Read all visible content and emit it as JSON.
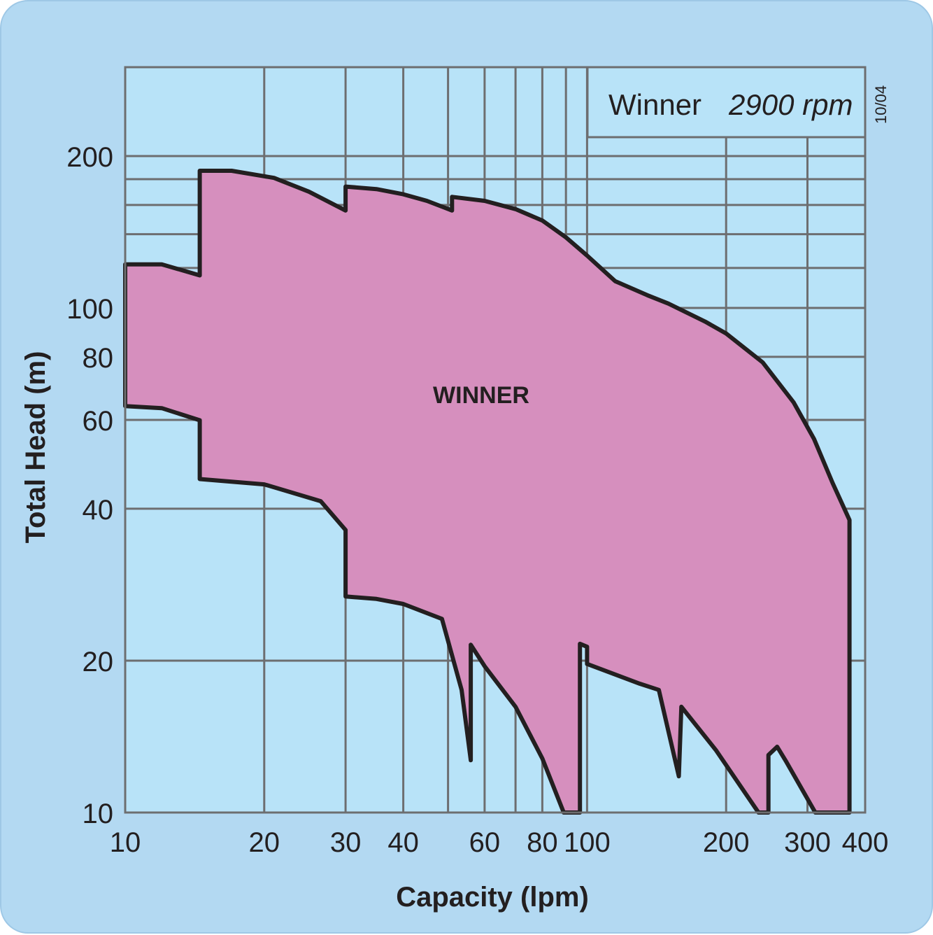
{
  "chart_data": {
    "type": "area",
    "xlabel": "Capacity (lpm)",
    "ylabel": "Total Head (m)",
    "x_scale": "log",
    "y_scale": "log",
    "xlim": [
      10,
      400
    ],
    "ylim": [
      10,
      300
    ],
    "x_ticks": [
      10,
      20,
      30,
      40,
      60,
      80,
      100,
      200,
      300,
      400
    ],
    "y_ticks": [
      10,
      20,
      40,
      60,
      80,
      100,
      200
    ],
    "x_minor_grid": [
      50,
      70,
      90
    ],
    "y_minor_grid": [
      120,
      140,
      160,
      180
    ],
    "grid": true,
    "annotation": {
      "model": "Winner",
      "speed": "2900 rpm",
      "date_code": "10/04"
    },
    "series": [
      {
        "name": "WINNER",
        "fill_color": "#d68fbe",
        "upper_boundary": [
          [
            10,
            63.9
          ],
          [
            10,
            122
          ],
          [
            12,
            122
          ],
          [
            14.5,
            116
          ],
          [
            14.5,
            187
          ],
          [
            17,
            187
          ],
          [
            21,
            181
          ],
          [
            25,
            170
          ],
          [
            30,
            156
          ],
          [
            30,
            174
          ],
          [
            35,
            172
          ],
          [
            40,
            168
          ],
          [
            45,
            163
          ],
          [
            51,
            156
          ],
          [
            51,
            166
          ],
          [
            60,
            163
          ],
          [
            70,
            157
          ],
          [
            80,
            149
          ],
          [
            90,
            138
          ],
          [
            100,
            127
          ],
          [
            115,
            113
          ],
          [
            135,
            106
          ],
          [
            150,
            102
          ],
          [
            180,
            94
          ],
          [
            200,
            89
          ],
          [
            240,
            78
          ],
          [
            280,
            65
          ],
          [
            310,
            55
          ],
          [
            340,
            45
          ],
          [
            370,
            38
          ]
        ],
        "lower_boundary": [
          [
            370,
            38
          ],
          [
            370,
            10
          ],
          [
            312,
            10
          ],
          [
            270,
            12.6
          ],
          [
            258,
            13.5
          ],
          [
            247,
            13
          ],
          [
            247,
            10
          ],
          [
            235,
            10
          ],
          [
            190,
            13.3
          ],
          [
            160,
            16.2
          ],
          [
            158,
            11.8
          ],
          [
            143,
            17.5
          ],
          [
            130,
            18
          ],
          [
            100,
            19.7
          ],
          [
            100,
            21.3
          ],
          [
            96.5,
            21.6
          ],
          [
            96.5,
            10
          ],
          [
            89,
            10
          ],
          [
            80,
            12.8
          ],
          [
            70,
            16.2
          ],
          [
            60,
            19.5
          ],
          [
            56,
            21.5
          ],
          [
            56,
            12.7
          ],
          [
            53.5,
            17.5
          ],
          [
            48.5,
            24.2
          ],
          [
            40,
            25.9
          ],
          [
            35,
            26.5
          ],
          [
            30,
            26.8
          ],
          [
            30,
            36.3
          ],
          [
            26.5,
            41.4
          ],
          [
            20,
            44.7
          ],
          [
            14.5,
            45.8
          ],
          [
            14.5,
            59.9
          ],
          [
            12,
            63.3
          ],
          [
            10,
            63.9
          ]
        ]
      }
    ]
  }
}
